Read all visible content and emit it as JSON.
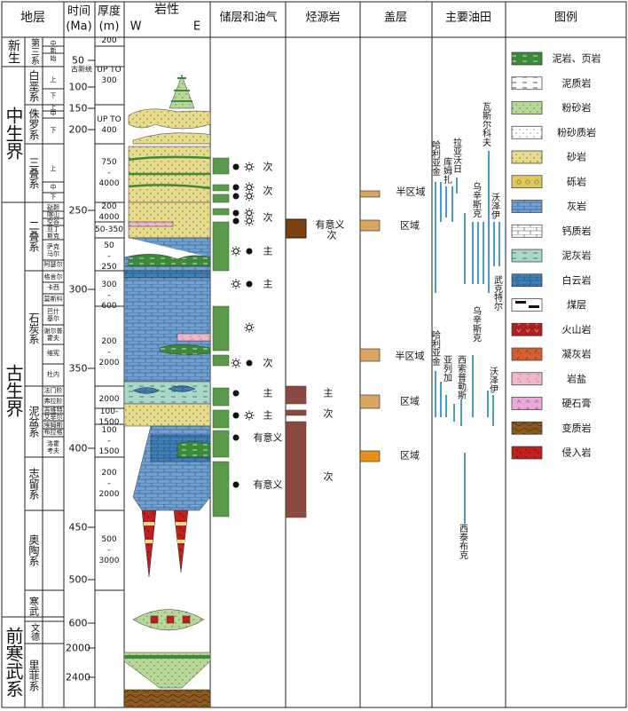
{
  "header": {
    "strata": "地层",
    "time": "时间",
    "time_unit": "(Ma)",
    "thickness": "厚度",
    "thickness_unit": "(m)",
    "lithology": "岩性",
    "west": "W",
    "east": "E",
    "reservoir": "储层和油气",
    "source": "烃源岩",
    "seal": "盖层",
    "oilfields": "主要油田",
    "legend": "图例"
  },
  "eras": [
    "新生",
    "中生界",
    "古生界",
    "前寒武系"
  ],
  "systems": [
    "第三系",
    "白垩系",
    "侏罗系",
    "三叠系",
    "二叠系",
    "石炭系",
    "泥盆系",
    "志留系",
    "奥陶系",
    "寒武",
    "文德",
    "里菲系"
  ],
  "series": [
    "中",
    "新",
    "始",
    "上",
    "下",
    "上",
    "中",
    "下",
    "上",
    "中",
    "下",
    "鞑靼",
    "喀山",
    "空谷",
    [
      "亚丁",
      "斯克"
    ],
    [
      "萨克",
      "马尔"
    ],
    "阿瑟尔",
    "格舍尔",
    "卡西",
    "莫斯科",
    [
      "巴什",
      "基尔"
    ],
    [
      "谢尔普",
      "霍夫"
    ],
    "维宪",
    "杜内",
    "法门阶",
    "弗拉阶",
    "吉维特",
    "艾菲尔",
    "埃姆斯",
    "布拉格",
    [
      "洛霍",
      "考夫"
    ]
  ],
  "time_ticks": [
    50,
    100,
    150,
    200,
    250,
    300,
    350,
    400,
    450,
    500,
    600,
    2000,
    2400
  ],
  "time_note": "古新统",
  "thickness": [
    [
      "200"
    ],
    [
      "UP TO",
      "300"
    ],
    [
      "UP TO",
      "400"
    ],
    [
      "750",
      "-",
      "4000"
    ],
    [
      "200",
      "4000"
    ],
    [
      "50-350"
    ],
    [
      "50",
      "-",
      "250"
    ],
    [
      "300",
      "-",
      "600"
    ],
    [
      "200",
      "-",
      "2000"
    ],
    [
      "2000"
    ],
    [
      "100-",
      "1500"
    ],
    [
      "100",
      "-",
      "1500"
    ],
    [
      "200",
      "-",
      "2000"
    ],
    [
      "500",
      "-",
      "3000"
    ]
  ],
  "reservoir_labels": [
    "次",
    "次",
    "次",
    "主",
    "主",
    "次",
    "主",
    "主",
    "有意义",
    "有意义"
  ],
  "source_labels": [
    "有意义",
    "次",
    "主",
    "次",
    "次"
  ],
  "seal_labels": [
    "半区域",
    "区域",
    "半区域",
    "区域",
    "区域"
  ],
  "oilfields": [
    "瓦斯尔科夫",
    "哈利亚金",
    "拉亚沃日",
    "库姆扎",
    "乌辛斯克",
    "沃泽伊",
    "武克特尔",
    "乌辛斯克",
    "哈利亚金",
    "亚列加",
    "西索普勒斯",
    "沃泽伊",
    "西泰布克"
  ],
  "legend": [
    "泥岩、页岩",
    "泥质岩",
    "粉砂岩",
    "粉砂质岩",
    "砂岩",
    "砾岩",
    "灰岩",
    "钙质岩",
    "泥灰岩",
    "白云岩",
    "煤层",
    "火山岩",
    "凝灰岩",
    "岩盐",
    "硬石膏",
    "变质岩",
    "侵入岩"
  ]
}
